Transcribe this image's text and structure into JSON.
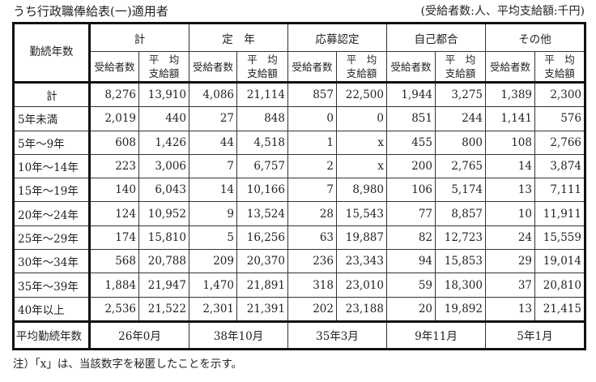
{
  "title": "うち行政職俸給表(一)適用者",
  "unit_note": "(受給者数:人、平均支給額:千円)",
  "header": {
    "row_label": "勤続年数",
    "groups": [
      "計",
      "定　年",
      "応募認定",
      "自己都合",
      "その他"
    ],
    "sub_count": "受給者数",
    "sub_avg_line1": "平　均",
    "sub_avg_line2": "支給額"
  },
  "rows": [
    {
      "label": "計",
      "values": [
        "8,276",
        "13,910",
        "4,086",
        "21,114",
        "857",
        "22,500",
        "1,944",
        "3,275",
        "1,389",
        "2,300"
      ]
    },
    {
      "label": "5年未満",
      "values": [
        "2,019",
        "440",
        "27",
        "848",
        "0",
        "0",
        "851",
        "244",
        "1,141",
        "576"
      ]
    },
    {
      "label": "5年～9年",
      "values": [
        "608",
        "1,426",
        "44",
        "4,518",
        "1",
        "x",
        "455",
        "800",
        "108",
        "2,766"
      ]
    },
    {
      "label": "10年～14年",
      "values": [
        "223",
        "3,006",
        "7",
        "6,757",
        "2",
        "x",
        "200",
        "2,765",
        "14",
        "3,874"
      ]
    },
    {
      "label": "15年～19年",
      "values": [
        "140",
        "6,043",
        "14",
        "10,166",
        "7",
        "8,980",
        "106",
        "5,174",
        "13",
        "7,111"
      ]
    },
    {
      "label": "20年～24年",
      "values": [
        "124",
        "10,952",
        "9",
        "13,524",
        "28",
        "15,543",
        "77",
        "8,857",
        "10",
        "11,911"
      ]
    },
    {
      "label": "25年～29年",
      "values": [
        "174",
        "15,810",
        "5",
        "16,256",
        "63",
        "19,887",
        "82",
        "12,723",
        "24",
        "15,559"
      ]
    },
    {
      "label": "30年～34年",
      "values": [
        "568",
        "20,788",
        "209",
        "20,370",
        "236",
        "23,343",
        "94",
        "15,853",
        "29",
        "19,014"
      ]
    },
    {
      "label": "35年～39年",
      "values": [
        "1,884",
        "21,947",
        "1,470",
        "21,891",
        "318",
        "23,010",
        "59",
        "18,300",
        "37",
        "20,810"
      ]
    },
    {
      "label": "40年以上",
      "values": [
        "2,536",
        "21,522",
        "2,301",
        "21,391",
        "202",
        "23,188",
        "20",
        "19,892",
        "13",
        "21,415"
      ]
    }
  ],
  "footer": {
    "label": "平均勤続年数",
    "values": [
      "26年0月",
      "38年10月",
      "35年3月",
      "9年11月",
      "5年1月"
    ]
  },
  "note": "注）「x」は、当該数字を秘匿したことを示す。"
}
